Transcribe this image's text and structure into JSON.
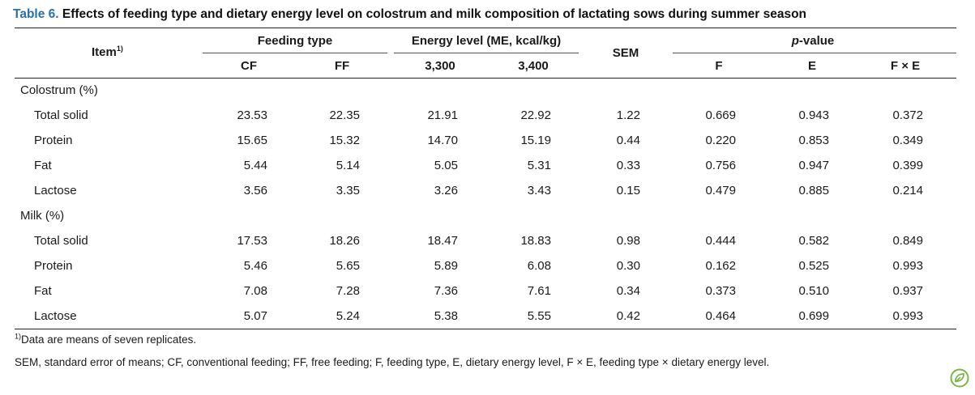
{
  "title": {
    "label": "Table 6.",
    "text": " Effects of feeding type and dietary energy level on colostrum and milk composition of lactating sows during summer season"
  },
  "header": {
    "item": "Item",
    "item_sup": "1)",
    "feeding_type": "Feeding type",
    "energy_level": "Energy level (ME, kcal/kg)",
    "sem": "SEM",
    "p_value_italic": "p",
    "p_value_rest": "-value",
    "sub": [
      "CF",
      "FF",
      "3,300",
      "3,400",
      "F",
      "E",
      "F × E"
    ]
  },
  "sections": [
    {
      "label": "Colostrum (%)",
      "rows": [
        {
          "item": "Total solid",
          "values": [
            "23.53",
            "22.35",
            "21.91",
            "22.92",
            "1.22",
            "0.669",
            "0.943",
            "0.372"
          ]
        },
        {
          "item": "Protein",
          "values": [
            "15.65",
            "15.32",
            "14.70",
            "15.19",
            "0.44",
            "0.220",
            "0.853",
            "0.349"
          ]
        },
        {
          "item": "Fat",
          "values": [
            "5.44",
            "5.14",
            "5.05",
            "5.31",
            "0.33",
            "0.756",
            "0.947",
            "0.399"
          ]
        },
        {
          "item": "Lactose",
          "values": [
            "3.56",
            "3.35",
            "3.26",
            "3.43",
            "0.15",
            "0.479",
            "0.885",
            "0.214"
          ]
        }
      ]
    },
    {
      "label": "Milk (%)",
      "rows": [
        {
          "item": "Total solid",
          "values": [
            "17.53",
            "18.26",
            "18.47",
            "18.83",
            "0.98",
            "0.444",
            "0.582",
            "0.849"
          ]
        },
        {
          "item": "Protein",
          "values": [
            "5.46",
            "5.65",
            "5.89",
            "6.08",
            "0.30",
            "0.162",
            "0.525",
            "0.993"
          ]
        },
        {
          "item": "Fat",
          "values": [
            "7.08",
            "7.28",
            "7.36",
            "7.61",
            "0.34",
            "0.373",
            "0.510",
            "0.937"
          ]
        },
        {
          "item": "Lactose",
          "values": [
            "5.07",
            "5.24",
            "5.38",
            "5.55",
            "0.42",
            "0.464",
            "0.699",
            "0.993"
          ]
        }
      ]
    }
  ],
  "footnotes": {
    "note1_sup": "1)",
    "note1_text": "Data are means of seven replicates.",
    "note2": "SEM, standard error of means; CF, conventional feeding; FF, free feeding; F, feeding type, E, dietary energy level, F × E, feeding type × dietary energy level."
  },
  "logo_icon": "leaf-logo-icon",
  "colors": {
    "title_label": "#2a6fa8",
    "logo": "#7ab648"
  }
}
